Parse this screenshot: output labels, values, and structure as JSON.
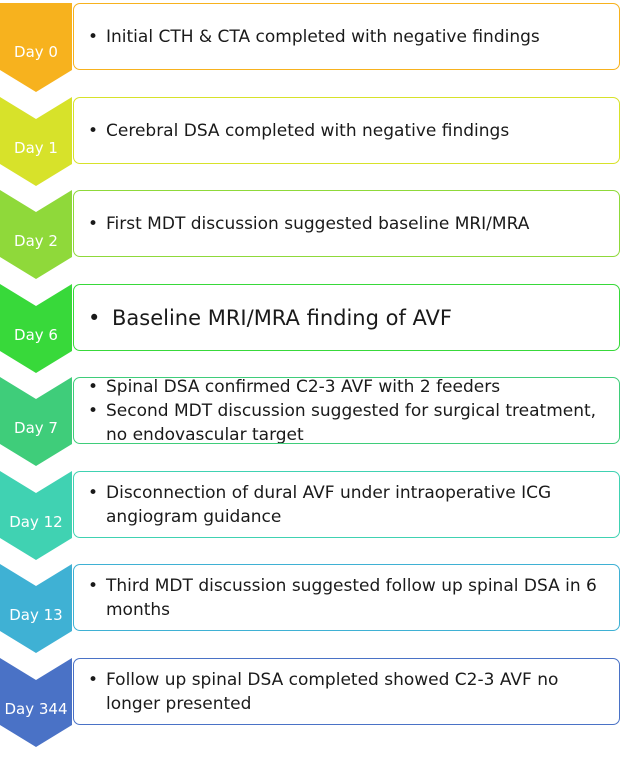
{
  "steps": [
    {
      "day": "Day 0",
      "color": "#f7b21e",
      "items": [
        "Initial CTH & CTA completed with negative findings"
      ]
    },
    {
      "day": "Day 1",
      "color": "#d7e22a",
      "items": [
        "Cerebral DSA completed with negative findings"
      ]
    },
    {
      "day": "Day 2",
      "color": "#8fd93a",
      "items": [
        "First MDT discussion suggested baseline MRI/MRA"
      ]
    },
    {
      "day": "Day 6",
      "color": "#38d93a",
      "emphasis": true,
      "items": [
        "Baseline MRI/MRA finding of AVF"
      ]
    },
    {
      "day": "Day 7",
      "color": "#3fcd7a",
      "items": [
        "Spinal DSA confirmed C2-3 AVF with 2 feeders",
        "Second MDT discussion suggested for surgical treatment, no endovascular target"
      ]
    },
    {
      "day": "Day 12",
      "color": "#40d2b2",
      "items": [
        "Disconnection of dural AVF under intraoperative ICG angiogram guidance"
      ]
    },
    {
      "day": "Day 13",
      "color": "#3fb1d4",
      "items": [
        "Third MDT discussion suggested follow up spinal DSA in 6 months"
      ]
    },
    {
      "day": "Day 344",
      "color": "#4a72c6",
      "items": [
        "Follow up spinal DSA completed showed C2-3 AVF no longer presented"
      ]
    }
  ],
  "bullet_symbol": "•"
}
